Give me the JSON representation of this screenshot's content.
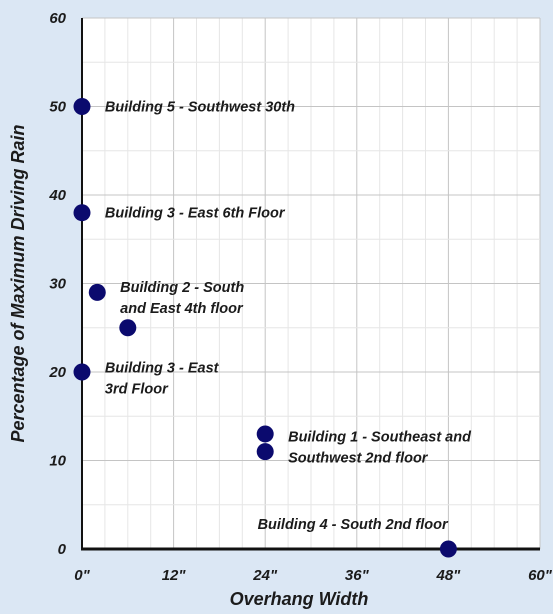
{
  "chart_data": {
    "type": "scatter",
    "title": "",
    "xlabel": "Overhang Width",
    "ylabel": "Percentage of Maximum Driving Rain",
    "xlim": [
      0,
      60
    ],
    "ylim": [
      0,
      60
    ],
    "x_ticks": [
      0,
      12,
      24,
      36,
      48,
      60
    ],
    "y_ticks": [
      0,
      10,
      20,
      30,
      40,
      50,
      60
    ],
    "x_tick_labels": [
      "0\"",
      "12\"",
      "24\"",
      "36\"",
      "48\"",
      "60\""
    ],
    "y_tick_labels": [
      "0",
      "10",
      "20",
      "30",
      "40",
      "50",
      "60"
    ],
    "x_minor_grid_step": 3,
    "y_minor_grid_step": 5,
    "grid": true,
    "background": "#dbe7f4",
    "plot_background": "#ffffff",
    "marker_color": "#0b0a6e",
    "points": [
      {
        "x": 0,
        "y": 50
      },
      {
        "x": 0,
        "y": 38
      },
      {
        "x": 2,
        "y": 29
      },
      {
        "x": 6,
        "y": 25
      },
      {
        "x": 0,
        "y": 20
      },
      {
        "x": 24,
        "y": 13
      },
      {
        "x": 24,
        "y": 11
      },
      {
        "x": 48,
        "y": 0
      }
    ],
    "annotations": [
      {
        "lines": [
          "Building 5 - Southwest 30th"
        ],
        "x": 3,
        "y": 50
      },
      {
        "lines": [
          "Building 3 - East 6th Floor"
        ],
        "x": 3,
        "y": 38
      },
      {
        "lines": [
          "Building 2 - South",
          "and East 4th floor"
        ],
        "x": 5,
        "y": 29.6
      },
      {
        "lines": [
          "Building 3 - East",
          "3rd Floor"
        ],
        "x": 3,
        "y": 20.5
      },
      {
        "lines": [
          "Building 1 - Southeast and",
          "Southwest 2nd floor"
        ],
        "x": 27,
        "y": 12.7
      },
      {
        "lines": [
          "Building 4 - South 2nd floor"
        ],
        "x": 23,
        "y": 2.8
      }
    ]
  }
}
